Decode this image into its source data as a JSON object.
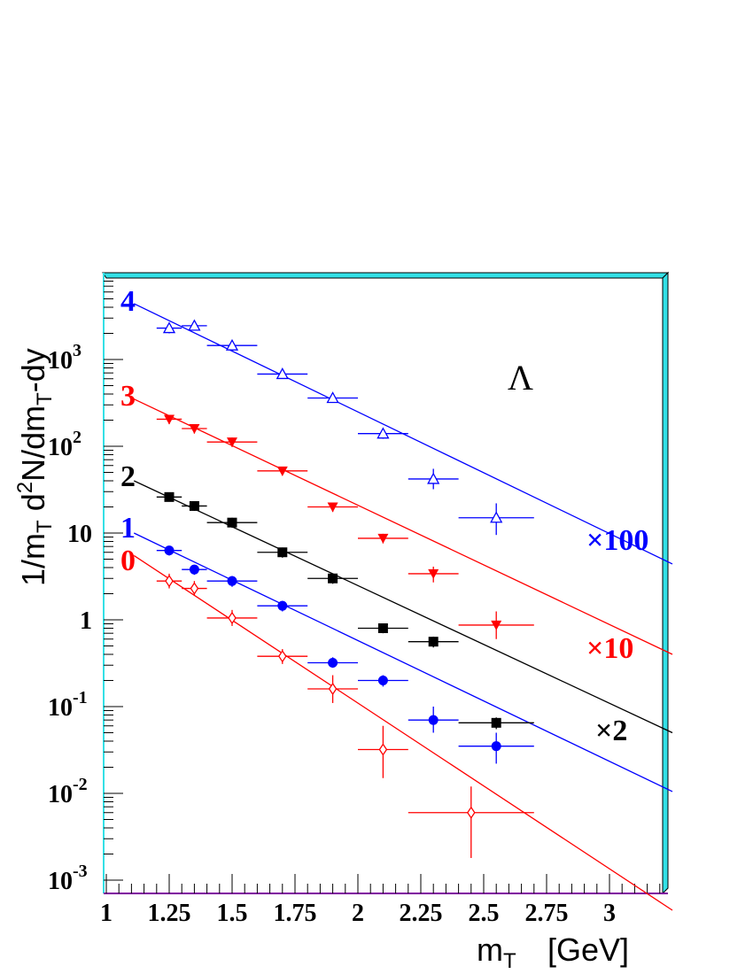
{
  "chart_data": {
    "type": "scatter",
    "particle_label": "Λ",
    "xlabel": "m",
    "xlabel_sub": "T",
    "xlabel_unit": "[GeV]",
    "ylabel_parts": [
      "1/m",
      "T",
      " d",
      "2",
      "N/dm",
      "T",
      "-dy"
    ],
    "y_scale": "log",
    "xlim": [
      1.0,
      3.25
    ],
    "ylim": [
      0.0008,
      9000
    ],
    "x_ticks": [
      {
        "v": 1,
        "label": "1"
      },
      {
        "v": 1.25,
        "label": "1.25"
      },
      {
        "v": 1.5,
        "label": "1.5"
      },
      {
        "v": 1.75,
        "label": "1.75"
      },
      {
        "v": 2,
        "label": "2"
      },
      {
        "v": 2.25,
        "label": "2.25"
      },
      {
        "v": 2.5,
        "label": "2.5"
      },
      {
        "v": 2.75,
        "label": "2.75"
      },
      {
        "v": 3,
        "label": "3"
      }
    ],
    "y_ticks": [
      {
        "v": 0.001,
        "base": "10",
        "exp": "-3"
      },
      {
        "v": 0.01,
        "base": "10",
        "exp": "-2"
      },
      {
        "v": 0.1,
        "base": "10",
        "exp": "-1"
      },
      {
        "v": 1,
        "base": "1",
        "exp": ""
      },
      {
        "v": 10,
        "base": "10",
        "exp": ""
      },
      {
        "v": 100,
        "base": "10",
        "exp": "2"
      },
      {
        "v": 1000,
        "base": "10",
        "exp": "3"
      }
    ],
    "series": [
      {
        "label": "0",
        "color": "#ff0000",
        "marker": "open-diamond",
        "scale_label": "",
        "fit": [
          [
            1.11,
            5.5
          ],
          [
            3.25,
            0.00045
          ]
        ],
        "points": [
          {
            "x": 1.25,
            "y": 2.8,
            "xerr": 0.05,
            "ylo": 2.3,
            "yhi": 3.4
          },
          {
            "x": 1.35,
            "y": 2.3,
            "xerr": 0.05,
            "ylo": 1.9,
            "yhi": 2.8
          },
          {
            "x": 1.5,
            "y": 1.05,
            "xerr": 0.1,
            "ylo": 0.85,
            "yhi": 1.3
          },
          {
            "x": 1.7,
            "y": 0.38,
            "xerr": 0.1,
            "ylo": 0.31,
            "yhi": 0.46
          },
          {
            "x": 1.9,
            "y": 0.16,
            "xerr": 0.1,
            "ylo": 0.11,
            "yhi": 0.23
          },
          {
            "x": 2.1,
            "y": 0.032,
            "xerr": 0.1,
            "ylo": 0.015,
            "yhi": 0.06
          },
          {
            "x": 2.45,
            "y": 0.006,
            "xerr": 0.25,
            "ylo": 0.0018,
            "yhi": 0.012
          }
        ]
      },
      {
        "label": "1",
        "color": "#0000ff",
        "marker": "filled-circle",
        "scale_label": "",
        "fit": [
          [
            1.11,
            10
          ],
          [
            3.25,
            0.0105
          ]
        ],
        "points": [
          {
            "x": 1.25,
            "y": 6.3,
            "xerr": 0.05,
            "ylo": 5.5,
            "yhi": 7.1
          },
          {
            "x": 1.35,
            "y": 3.8,
            "xerr": 0.05,
            "ylo": 3.3,
            "yhi": 4.3
          },
          {
            "x": 1.5,
            "y": 2.8,
            "xerr": 0.1,
            "ylo": 2.4,
            "yhi": 3.2
          },
          {
            "x": 1.7,
            "y": 1.45,
            "xerr": 0.1,
            "ylo": 1.25,
            "yhi": 1.65
          },
          {
            "x": 1.9,
            "y": 0.32,
            "xerr": 0.1,
            "ylo": 0.28,
            "yhi": 0.37
          },
          {
            "x": 2.1,
            "y": 0.2,
            "xerr": 0.1,
            "ylo": 0.17,
            "yhi": 0.23
          },
          {
            "x": 2.3,
            "y": 0.07,
            "xerr": 0.1,
            "ylo": 0.05,
            "yhi": 0.1
          },
          {
            "x": 2.55,
            "y": 0.035,
            "xerr": 0.15,
            "ylo": 0.022,
            "yhi": 0.05
          }
        ]
      },
      {
        "label": "2",
        "color": "#000000",
        "marker": "filled-square",
        "scale_label": "×2",
        "fit": [
          [
            1.11,
            40
          ],
          [
            3.25,
            0.05
          ]
        ],
        "points": [
          {
            "x": 1.25,
            "y": 26,
            "xerr": 0.05,
            "ylo": 23,
            "yhi": 29
          },
          {
            "x": 1.35,
            "y": 20.5,
            "xerr": 0.05,
            "ylo": 18,
            "yhi": 23
          },
          {
            "x": 1.5,
            "y": 13.2,
            "xerr": 0.1,
            "ylo": 11.5,
            "yhi": 15
          },
          {
            "x": 1.7,
            "y": 6,
            "xerr": 0.1,
            "ylo": 5.2,
            "yhi": 6.8
          },
          {
            "x": 1.9,
            "y": 3,
            "xerr": 0.1,
            "ylo": 2.6,
            "yhi": 3.4
          },
          {
            "x": 2.1,
            "y": 0.8,
            "xerr": 0.1,
            "ylo": 0.7,
            "yhi": 0.9
          },
          {
            "x": 2.3,
            "y": 0.56,
            "xerr": 0.1,
            "ylo": 0.48,
            "yhi": 0.64
          },
          {
            "x": 2.55,
            "y": 0.065,
            "xerr": 0.15,
            "ylo": 0.055,
            "yhi": 0.075
          }
        ]
      },
      {
        "label": "3",
        "color": "#ff0000",
        "marker": "filled-triangle-down",
        "scale_label": "×10",
        "fit": [
          [
            1.11,
            350
          ],
          [
            3.25,
            0.4
          ]
        ],
        "points": [
          {
            "x": 1.25,
            "y": 205,
            "xerr": 0.05,
            "ylo": 180,
            "yhi": 230
          },
          {
            "x": 1.35,
            "y": 160,
            "xerr": 0.05,
            "ylo": 140,
            "yhi": 180
          },
          {
            "x": 1.5,
            "y": 112,
            "xerr": 0.1,
            "ylo": 98,
            "yhi": 126
          },
          {
            "x": 1.7,
            "y": 52,
            "xerr": 0.1,
            "ylo": 46,
            "yhi": 58
          },
          {
            "x": 1.9,
            "y": 20,
            "xerr": 0.1,
            "ylo": 17.5,
            "yhi": 22.5
          },
          {
            "x": 2.1,
            "y": 8.7,
            "xerr": 0.1,
            "ylo": 7.6,
            "yhi": 9.8
          },
          {
            "x": 2.3,
            "y": 3.4,
            "xerr": 0.1,
            "ylo": 2.7,
            "yhi": 4.1
          },
          {
            "x": 2.55,
            "y": 0.87,
            "xerr": 0.15,
            "ylo": 0.6,
            "yhi": 1.25
          }
        ]
      },
      {
        "label": "4",
        "color": "#0000ff",
        "marker": "open-triangle-up",
        "scale_label": "×100",
        "fit": [
          [
            1.11,
            4400
          ],
          [
            3.25,
            4.4
          ]
        ],
        "points": [
          {
            "x": 1.25,
            "y": 2300,
            "xerr": 0.05,
            "ylo": 2000,
            "yhi": 2600
          },
          {
            "x": 1.35,
            "y": 2450,
            "xerr": 0.05,
            "ylo": 2150,
            "yhi": 2750
          },
          {
            "x": 1.5,
            "y": 1450,
            "xerr": 0.1,
            "ylo": 1270,
            "yhi": 1630
          },
          {
            "x": 1.7,
            "y": 680,
            "xerr": 0.1,
            "ylo": 600,
            "yhi": 760
          },
          {
            "x": 1.9,
            "y": 360,
            "xerr": 0.1,
            "ylo": 320,
            "yhi": 400
          },
          {
            "x": 2.1,
            "y": 140,
            "xerr": 0.1,
            "ylo": 122,
            "yhi": 158
          },
          {
            "x": 2.3,
            "y": 42,
            "xerr": 0.1,
            "ylo": 32,
            "yhi": 55
          },
          {
            "x": 2.55,
            "y": 15,
            "xerr": 0.15,
            "ylo": 9.5,
            "yhi": 22
          }
        ]
      }
    ]
  }
}
